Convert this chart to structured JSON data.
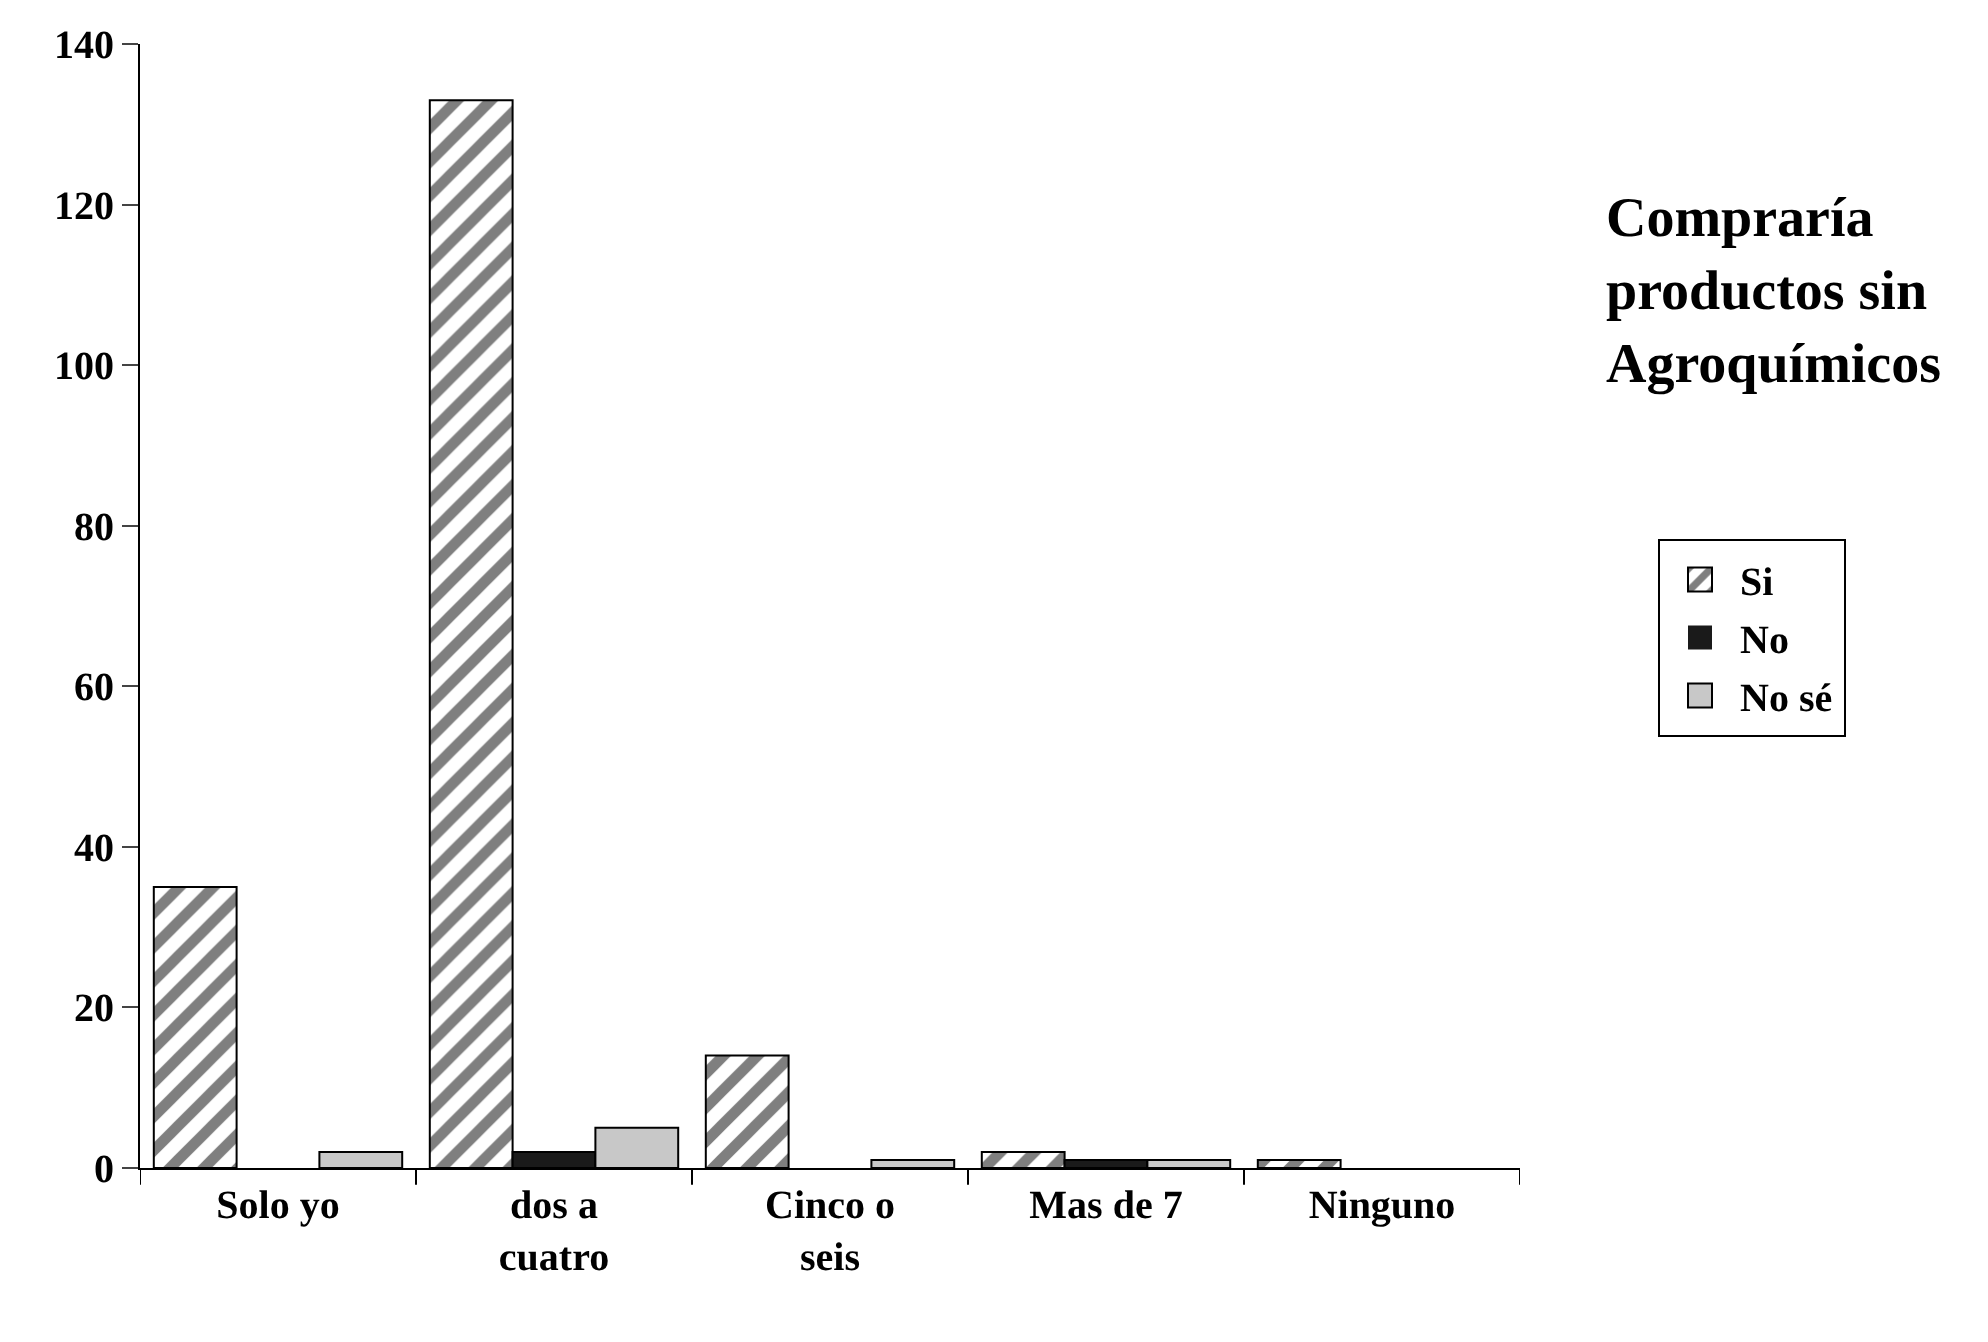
{
  "chart_data": {
    "type": "bar",
    "legend_title": "Compraría productos sin Agroquímicos",
    "categories": [
      "Solo yo",
      "dos a cuatro",
      "Cinco o seis",
      "Mas de 7",
      "Ninguno"
    ],
    "series": [
      {
        "name": "Si",
        "color": "#000000",
        "values": [
          35,
          133,
          14,
          2,
          1
        ]
      },
      {
        "name": "No",
        "color": "#1a1a1a",
        "values": [
          0,
          2,
          0,
          1,
          0
        ]
      },
      {
        "name": "No sé",
        "color": "#c8c8c8",
        "values": [
          2,
          5,
          1,
          1,
          0
        ]
      }
    ],
    "ylim": [
      0,
      140
    ],
    "yticks": [
      0,
      20,
      40,
      60,
      80,
      100,
      120,
      140
    ],
    "legend": "right"
  }
}
